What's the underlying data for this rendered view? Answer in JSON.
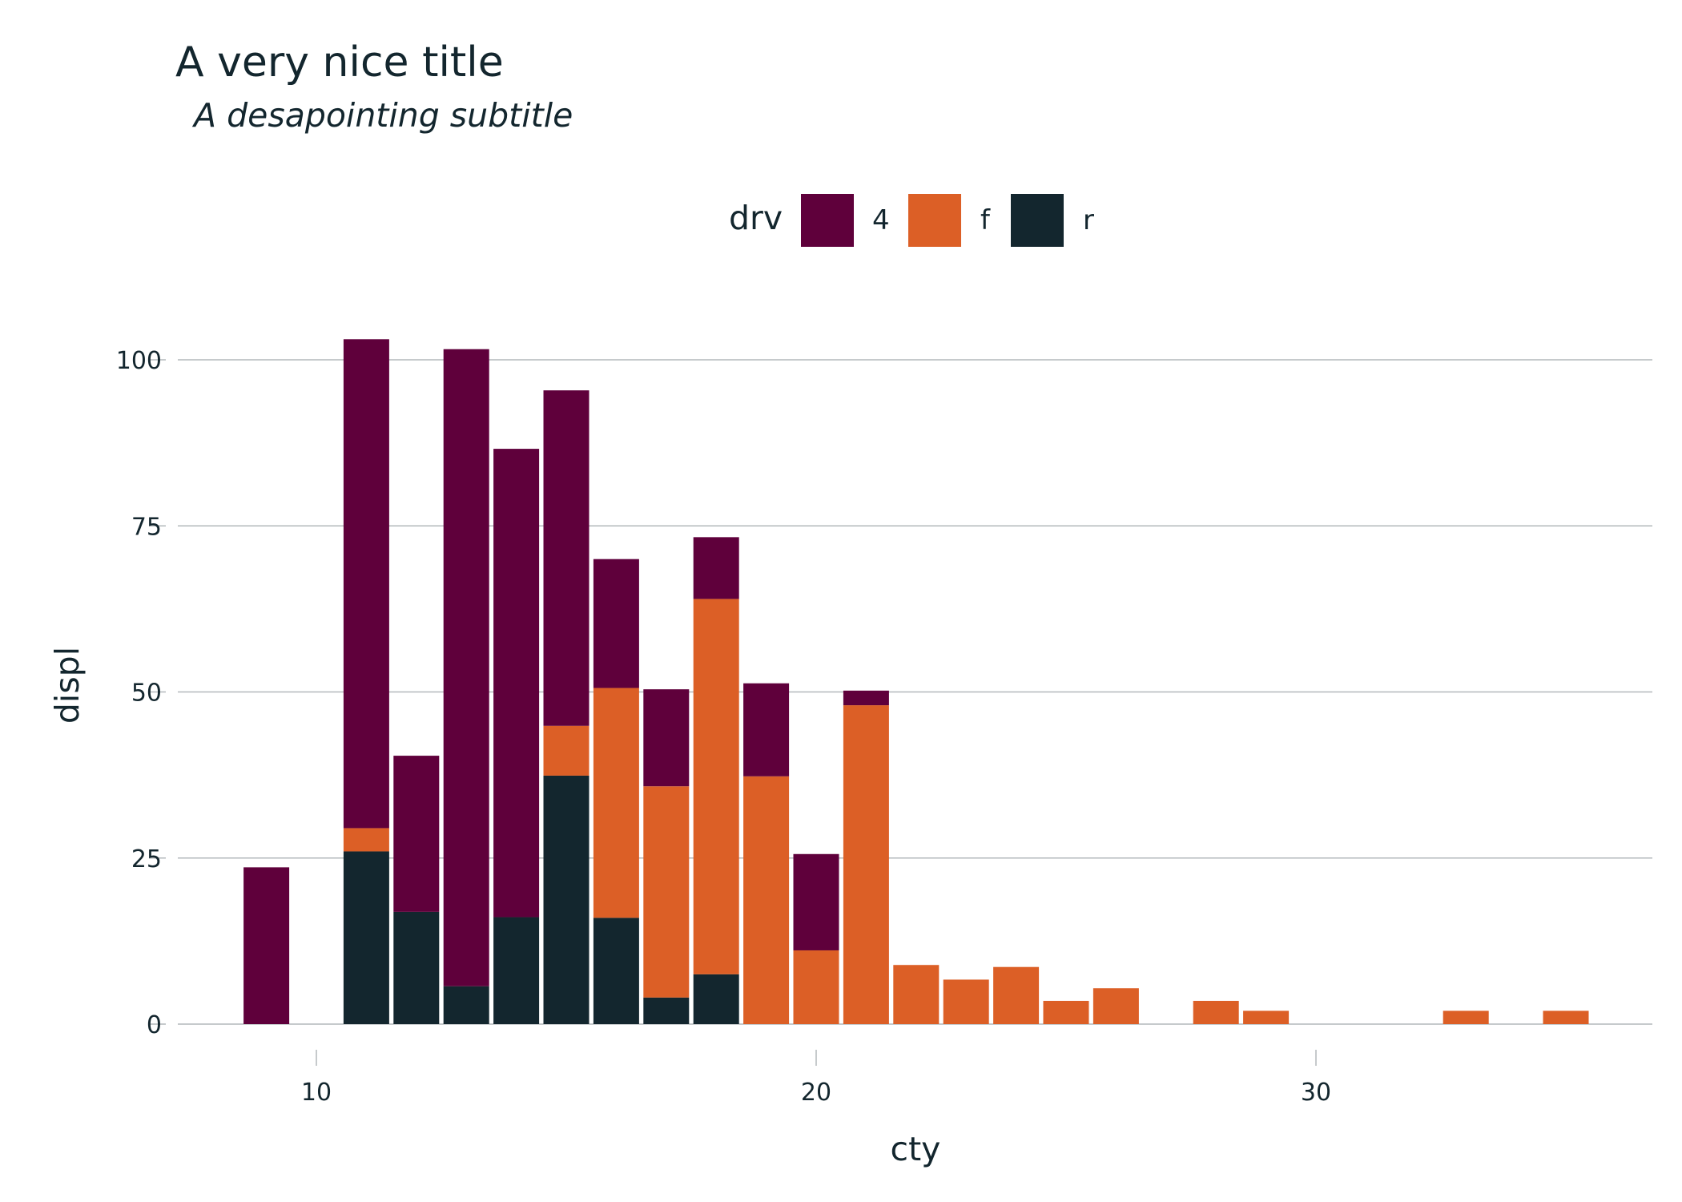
{
  "chart_data": {
    "type": "bar",
    "stacked": true,
    "title": "A very nice title",
    "subtitle": "A desapointing subtitle",
    "xlabel": "cty",
    "ylabel": "displ",
    "xlim": [
      7.2,
      35.5
    ],
    "ylim": [
      0,
      110
    ],
    "xticks": [
      10,
      20,
      30
    ],
    "yticks": [
      0,
      25,
      50,
      75,
      100
    ],
    "grid": "horizontal",
    "legend": {
      "title": "drv",
      "position": "top",
      "entries": [
        "4",
        "f",
        "r"
      ]
    },
    "colors": {
      "4": "#5f003b",
      "f": "#dc5f26",
      "r": "#13262e"
    },
    "x": [
      9,
      11,
      12,
      13,
      14,
      15,
      16,
      17,
      18,
      19,
      20,
      21,
      22,
      23,
      24,
      25,
      26,
      28,
      29,
      33,
      35
    ],
    "series": [
      {
        "name": "r",
        "values": [
          0,
          26.0,
          16.9,
          5.7,
          16.1,
          37.4,
          16.0,
          4.0,
          7.5,
          0,
          0,
          0,
          0,
          0,
          0,
          0,
          0,
          0,
          0,
          0,
          0
        ]
      },
      {
        "name": "f",
        "values": [
          0,
          3.5,
          0,
          0,
          0,
          7.5,
          34.6,
          31.8,
          56.5,
          37.3,
          11.1,
          48.0,
          8.9,
          6.7,
          8.6,
          3.5,
          5.4,
          3.5,
          2.0,
          2.0,
          2.0
        ]
      },
      {
        "name": "4",
        "values": [
          23.6,
          73.6,
          23.5,
          95.9,
          70.5,
          50.5,
          19.4,
          14.6,
          9.3,
          14.0,
          14.5,
          2.2,
          0,
          0,
          0,
          0,
          0,
          0,
          0,
          0,
          0
        ]
      }
    ]
  }
}
